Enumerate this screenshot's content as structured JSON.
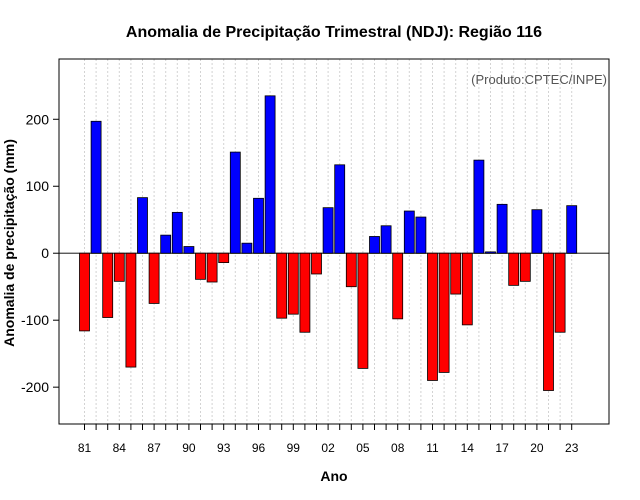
{
  "chart_data": {
    "type": "bar",
    "title": "Anomalia de Precipitação Trimestral (NDJ): Região 116",
    "xlabel": "Ano",
    "ylabel": "Anomalia de precipitação (mm)",
    "annotation": "(Produto:CPTEC/INPE)",
    "ylim": [
      -255,
      290
    ],
    "yticks": [
      -200,
      -100,
      0,
      100,
      200
    ],
    "grid": true,
    "years": [
      1981,
      1982,
      1983,
      1984,
      1985,
      1986,
      1987,
      1988,
      1989,
      1990,
      1991,
      1992,
      1993,
      1994,
      1995,
      1996,
      1997,
      1998,
      1999,
      2000,
      2001,
      2002,
      2003,
      2004,
      2005,
      2006,
      2007,
      2008,
      2009,
      2010,
      2011,
      2012,
      2013,
      2014,
      2015,
      2016,
      2017,
      2018,
      2019,
      2020,
      2021,
      2022,
      2023
    ],
    "xtick_years": [
      1981,
      1984,
      1987,
      1990,
      1993,
      1996,
      1999,
      2002,
      2005,
      2008,
      2011,
      2014,
      2017,
      2020,
      2023
    ],
    "xtick_labels": [
      "81",
      "84",
      "87",
      "90",
      "93",
      "96",
      "99",
      "02",
      "05",
      "08",
      "11",
      "14",
      "17",
      "20",
      "23"
    ],
    "values": [
      -116,
      197,
      -96,
      -42,
      -170,
      83,
      -75,
      27,
      61,
      10,
      -39,
      -43,
      -14,
      151,
      15,
      82,
      235,
      -97,
      -91,
      -118,
      -31,
      68,
      132,
      -50,
      -172,
      25,
      41,
      -98,
      63,
      54,
      -190,
      -178,
      -61,
      -107,
      139,
      2,
      73,
      -48,
      -42,
      65,
      -205,
      -118,
      71
    ],
    "colors": {
      "positive": "#0000ff",
      "negative": "#ff0000",
      "zero_line": "#444444",
      "grid": "#d3d3d3"
    }
  }
}
